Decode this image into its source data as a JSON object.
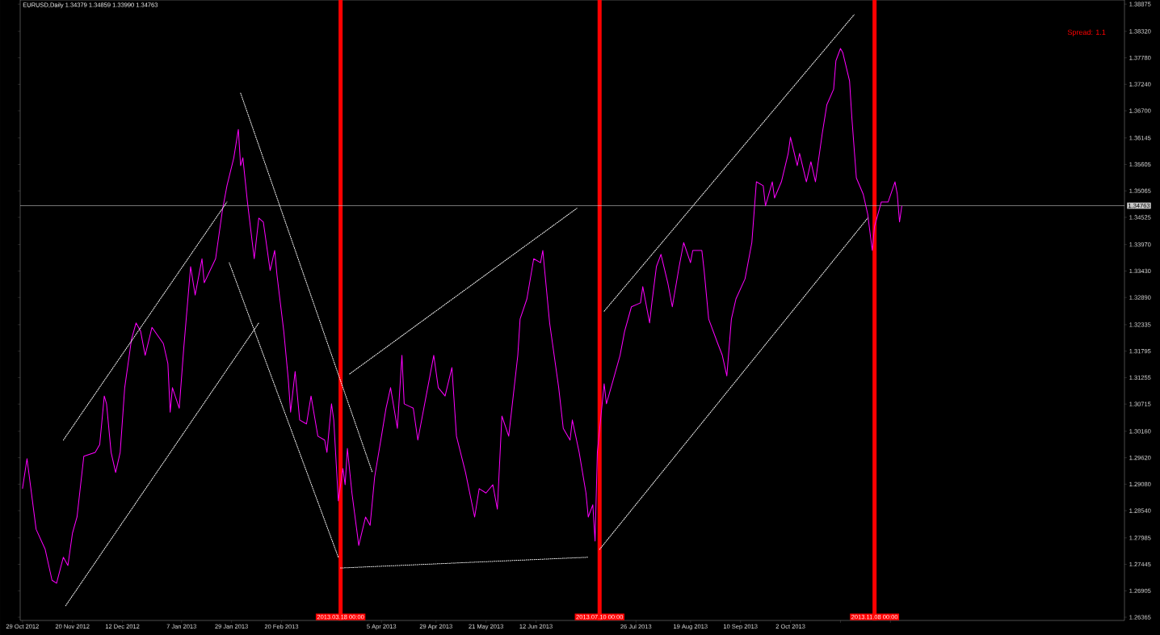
{
  "chart_data": {
    "type": "line",
    "title": "EURUSD,Daily  1.34379 1.34859 1.33990 1.34763",
    "annotations": [
      "Spread: 1.1"
    ],
    "xlim": [
      "2012-10-28",
      "2014-02-26"
    ],
    "xticks": [
      {
        "value": "2012-10-29",
        "label": "29 Oct 2012"
      },
      {
        "value": "2012-11-20",
        "label": "20 Nov 2012"
      },
      {
        "value": "2012-12-12",
        "label": "12 Dec 2012"
      },
      {
        "value": "2013-01-07",
        "label": "7 Jan 2013"
      },
      {
        "value": "2013-01-29",
        "label": "29 Jan 2013"
      },
      {
        "value": "2013-02-20",
        "label": "20 Feb 2013"
      },
      {
        "value": "2013-04-05",
        "label": "5 Apr 2013"
      },
      {
        "value": "2013-04-29",
        "label": "29 Apr 2013"
      },
      {
        "value": "2013-05-21",
        "label": "21 May 2013"
      },
      {
        "value": "2013-06-12",
        "label": "12 Jun 2013"
      },
      {
        "value": "2013-07-26",
        "label": "26 Jul 2013"
      },
      {
        "value": "2013-08-19",
        "label": "19 Aug 2013"
      },
      {
        "value": "2013-09-10",
        "label": "10 Sep 2013"
      },
      {
        "value": "2013-10-02",
        "label": "2 Oct 2013"
      },
      {
        "value": "2013-10-24",
        "label": null
      },
      {
        "value": "2013-11-15",
        "label": null
      }
    ],
    "ylim": [
      1.263,
      1.3896
    ],
    "yticks": [
      1.38875,
      {
        "value": 1.3832,
        "label": "1.38320"
      },
      {
        "value": 1.3778,
        "label": "1.37780"
      },
      {
        "value": 1.3724,
        "label": "1.37240"
      },
      {
        "value": 1.367,
        "label": "1.36700"
      },
      1.36145,
      1.35605,
      1.35065,
      1.34525,
      {
        "value": 1.3397,
        "label": "1.33970"
      },
      {
        "value": 1.3343,
        "label": "1.33430"
      },
      {
        "value": 1.3289,
        "label": "1.32890"
      },
      1.32335,
      1.31795,
      1.31255,
      1.30715,
      {
        "value": 1.3016,
        "label": "1.30160"
      },
      {
        "value": 1.2962,
        "label": "1.29620"
      },
      {
        "value": 1.2908,
        "label": "1.29080"
      },
      {
        "value": 1.2854,
        "label": "1.28540"
      },
      1.27985,
      1.27445,
      1.26905,
      1.26365
    ],
    "ref_lines": [
      {
        "axis": "x",
        "value": "2013-03-18",
        "label": "2013.03.18 00:00",
        "color": "#ff0000"
      },
      {
        "axis": "x",
        "value": "2013-07-10",
        "label": "2013.07.10 00:00",
        "color": "#ff0000"
      },
      {
        "axis": "x",
        "value": "2013-11-08",
        "label": "2013.11.08 00:00",
        "color": "#ff0000"
      },
      {
        "axis": "y",
        "value": 1.34763,
        "label": "1.34763",
        "color": "#c8c8c8"
      }
    ],
    "series": [
      {
        "color": "#ff00ff",
        "line_style": "solid",
        "x": [
          "2012-10-29",
          "2012-10-31",
          "2012-11-04",
          "2012-11-08",
          "2012-11-11",
          "2012-11-13",
          "2012-11-16",
          "2012-11-18",
          "2012-11-20",
          "2012-11-22",
          "2012-11-25",
          "2012-11-30",
          "2012-12-02",
          "2012-12-04",
          "2012-12-05",
          "2012-12-07",
          "2012-12-09",
          "2012-12-11",
          "2012-12-13",
          "2012-12-16",
          "2012-12-18",
          "2012-12-20",
          "2012-12-22",
          "2012-12-25",
          "2012-12-30",
          "2013-01-01",
          "2013-01-02",
          "2013-01-03",
          "2013-01-06",
          "2013-01-08",
          "2013-01-11",
          "2013-01-13",
          "2013-01-16",
          "2013-01-17",
          "2013-01-22",
          "2013-01-25",
          "2013-01-27",
          "2013-01-30",
          "2013-02-01",
          "2013-02-02",
          "2013-02-03",
          "2013-02-05",
          "2013-02-08",
          "2013-02-10",
          "2013-02-12",
          "2013-02-15",
          "2013-02-17",
          "2013-02-18",
          "2013-02-21",
          "2013-02-23",
          "2013-02-24",
          "2013-02-26",
          "2013-02-28",
          "2013-03-03",
          "2013-03-05",
          "2013-03-08",
          "2013-03-11",
          "2013-03-12",
          "2013-03-14",
          "2013-03-15",
          "2013-03-17",
          "2013-03-19",
          "2013-03-20",
          "2013-03-21",
          "2013-03-23",
          "2013-03-26",
          "2013-03-29",
          "2013-03-31",
          "2013-04-02",
          "2013-04-05",
          "2013-04-07",
          "2013-04-09",
          "2013-04-12",
          "2013-04-14",
          "2013-04-15",
          "2013-04-19",
          "2013-04-21",
          "2013-04-26",
          "2013-04-28",
          "2013-04-30",
          "2013-05-03",
          "2013-05-06",
          "2013-05-08",
          "2013-05-12",
          "2013-05-16",
          "2013-05-18",
          "2013-05-21",
          "2013-05-24",
          "2013-05-26",
          "2013-05-28",
          "2013-05-31",
          "2013-06-04",
          "2013-06-05",
          "2013-06-08",
          "2013-06-11",
          "2013-06-14",
          "2013-06-15",
          "2013-06-18",
          "2013-06-22",
          "2013-06-24",
          "2013-06-27",
          "2013-06-28",
          "2013-07-01",
          "2013-07-04",
          "2013-07-05",
          "2013-07-07",
          "2013-07-08",
          "2013-07-09",
          "2013-07-12",
          "2013-07-13",
          "2013-07-16",
          "2013-07-19",
          "2013-07-21",
          "2013-07-24",
          "2013-07-28",
          "2013-07-29",
          "2013-08-01",
          "2013-08-02",
          "2013-08-04",
          "2013-08-06",
          "2013-08-09",
          "2013-08-11",
          "2013-08-14",
          "2013-08-16",
          "2013-08-19",
          "2013-08-20",
          "2013-08-24",
          "2013-08-25",
          "2013-08-27",
          "2013-08-31",
          "2013-09-02",
          "2013-09-04",
          "2013-09-06",
          "2013-09-08",
          "2013-09-12",
          "2013-09-15",
          "2013-09-17",
          "2013-09-20",
          "2013-09-21",
          "2013-09-24",
          "2013-09-25",
          "2013-09-28",
          "2013-10-01",
          "2013-10-02",
          "2013-10-05",
          "2013-10-06",
          "2013-10-09",
          "2013-10-11",
          "2013-10-13",
          "2013-10-16",
          "2013-10-18",
          "2013-10-21",
          "2013-10-22",
          "2013-10-24",
          "2013-10-25",
          "2013-10-28",
          "2013-10-29",
          "2013-10-31",
          "2013-11-03",
          "2013-11-05",
          "2013-11-07",
          "2013-11-08",
          "2013-11-11",
          "2013-11-14",
          "2013-11-17",
          "2013-11-18",
          "2013-11-19",
          "2013-11-20"
        ],
        "values": [
          1.2899,
          1.296,
          1.2816,
          1.2775,
          1.2712,
          1.2706,
          1.2759,
          1.2742,
          1.2808,
          1.2841,
          1.2965,
          1.2973,
          1.2989,
          1.3088,
          1.3072,
          1.2973,
          1.2932,
          1.2973,
          1.3105,
          1.3204,
          1.3237,
          1.322,
          1.3171,
          1.3228,
          1.3195,
          1.3154,
          1.3055,
          1.3105,
          1.3063,
          1.3187,
          1.3352,
          1.3294,
          1.3368,
          1.3319,
          1.3368,
          1.3467,
          1.3517,
          1.3574,
          1.3632,
          1.3558,
          1.3574,
          1.3484,
          1.3368,
          1.3451,
          1.3443,
          1.3344,
          1.3385,
          1.3335,
          1.322,
          1.3121,
          1.3055,
          1.3138,
          1.3039,
          1.3031,
          1.3088,
          1.3006,
          1.2998,
          1.2973,
          1.3072,
          1.3039,
          1.2874,
          1.294,
          1.2907,
          1.2981,
          1.289,
          1.2783,
          1.2841,
          1.2824,
          1.2923,
          1.3006,
          1.3063,
          1.3105,
          1.3022,
          1.3171,
          1.3072,
          1.3063,
          1.2998,
          1.3121,
          1.3171,
          1.3105,
          1.3088,
          1.3146,
          1.3006,
          1.2932,
          1.2841,
          1.2899,
          1.289,
          1.2907,
          1.2857,
          1.3047,
          1.3006,
          1.3171,
          1.3245,
          1.3286,
          1.3368,
          1.336,
          1.3385,
          1.3237,
          1.3105,
          1.3022,
          1.2998,
          1.3039,
          1.2973,
          1.289,
          1.2841,
          1.2866,
          1.2792,
          1.2973,
          1.3113,
          1.3072,
          1.3121,
          1.3171,
          1.322,
          1.327,
          1.3278,
          1.3311,
          1.3237,
          1.3278,
          1.3352,
          1.3377,
          1.3319,
          1.327,
          1.3352,
          1.3401,
          1.336,
          1.3385,
          1.3385,
          1.3344,
          1.3245,
          1.3195,
          1.3171,
          1.3129,
          1.3245,
          1.3286,
          1.3327,
          1.3401,
          1.3525,
          1.3517,
          1.3476,
          1.3525,
          1.3492,
          1.3525,
          1.3583,
          1.3616,
          1.3558,
          1.3583,
          1.3525,
          1.3566,
          1.3525,
          1.3624,
          1.3682,
          1.3714,
          1.3772,
          1.3797,
          1.3789,
          1.3731,
          1.3657,
          1.3533,
          1.35,
          1.3459,
          1.3385,
          1.3434,
          1.3484,
          1.3484,
          1.3525,
          1.35,
          1.3443,
          1.3476
        ]
      },
      {
        "type": "line",
        "color": "#ffffff",
        "line_style": "dotted",
        "x": [
          "2012-11-16",
          "2013-01-27"
        ],
        "values": [
          1.2998,
          1.3484
        ]
      },
      {
        "type": "line",
        "color": "#ffffff",
        "line_style": "dotted",
        "x": [
          "2012-11-17",
          "2013-02-10"
        ],
        "values": [
          1.266,
          1.3237
        ]
      },
      {
        "type": "line",
        "color": "#ffffff",
        "line_style": "dotted",
        "x": [
          "2013-02-02",
          "2013-04-01"
        ],
        "values": [
          1.3706,
          1.2932
        ]
      },
      {
        "type": "line",
        "color": "#ffffff",
        "line_style": "dotted",
        "x": [
          "2013-01-28",
          "2013-03-17"
        ],
        "values": [
          1.336,
          1.2759
        ]
      },
      {
        "type": "line",
        "color": "#ffffff",
        "line_style": "dotted",
        "x": [
          "2013-03-22",
          "2013-06-30"
        ],
        "values": [
          1.3133,
          1.3471
        ]
      },
      {
        "type": "line",
        "color": "#ffffff",
        "line_style": "dotted",
        "x": [
          "2013-03-18",
          "2013-07-05"
        ],
        "values": [
          1.2737,
          1.2759
        ]
      },
      {
        "type": "line",
        "color": "#ffffff",
        "line_style": "dotted",
        "x": [
          "2013-07-12",
          "2013-10-30"
        ],
        "values": [
          1.3261,
          1.3866
        ]
      },
      {
        "type": "line",
        "color": "#ffffff",
        "line_style": "dotted",
        "x": [
          "2013-07-10",
          "2013-11-05"
        ],
        "values": [
          1.2775,
          1.3451
        ]
      }
    ]
  }
}
